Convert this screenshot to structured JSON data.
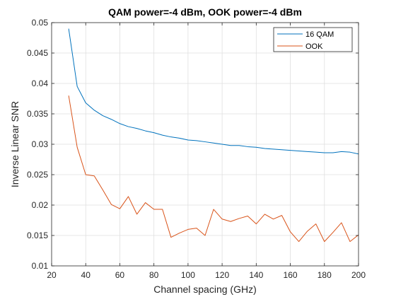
{
  "chart_data": {
    "type": "line",
    "title": "QAM power=-4 dBm, OOK power=-4 dBm",
    "xlabel": "Channel spacing (GHz)",
    "ylabel": "Inverse Linear SNR",
    "xlim": [
      20,
      200
    ],
    "ylim": [
      0.01,
      0.05
    ],
    "xticks": [
      20,
      40,
      60,
      80,
      100,
      120,
      140,
      160,
      180,
      200
    ],
    "yticks": [
      0.01,
      0.015,
      0.02,
      0.025,
      0.03,
      0.035,
      0.04,
      0.045,
      0.05
    ],
    "xtick_labels": [
      "20",
      "40",
      "60",
      "80",
      "100",
      "120",
      "140",
      "160",
      "180",
      "200"
    ],
    "ytick_labels": [
      "0.01",
      "0.015",
      "0.02",
      "0.025",
      "0.03",
      "0.035",
      "0.04",
      "0.045",
      "0.05"
    ],
    "grid": true,
    "legend_position": "top-right",
    "x": [
      30,
      35,
      40,
      45,
      50,
      55,
      60,
      65,
      70,
      75,
      80,
      85,
      90,
      95,
      100,
      105,
      110,
      115,
      120,
      125,
      130,
      135,
      140,
      145,
      150,
      155,
      160,
      165,
      170,
      175,
      180,
      185,
      190,
      195,
      200
    ],
    "series": [
      {
        "name": "16 QAM",
        "color": "#0072BD",
        "values": [
          0.049,
          0.0395,
          0.0368,
          0.0356,
          0.0347,
          0.0341,
          0.0334,
          0.0329,
          0.0326,
          0.0322,
          0.0319,
          0.0315,
          0.0312,
          0.031,
          0.0307,
          0.0306,
          0.0304,
          0.0302,
          0.03,
          0.0298,
          0.0298,
          0.0296,
          0.0295,
          0.0293,
          0.0292,
          0.0291,
          0.029,
          0.0289,
          0.0288,
          0.0287,
          0.0286,
          0.0286,
          0.0288,
          0.0287,
          0.0284
        ]
      },
      {
        "name": "OOK",
        "color": "#D95319",
        "values": [
          0.038,
          0.0295,
          0.025,
          0.0248,
          0.0225,
          0.0201,
          0.0194,
          0.0214,
          0.0185,
          0.0204,
          0.0193,
          0.0193,
          0.0147,
          0.0154,
          0.016,
          0.0162,
          0.015,
          0.0193,
          0.0177,
          0.0173,
          0.0178,
          0.0182,
          0.0169,
          0.0185,
          0.0177,
          0.0183,
          0.0156,
          0.014,
          0.0157,
          0.0169,
          0.014,
          0.0155,
          0.0171,
          0.014,
          0.0151
        ]
      }
    ]
  }
}
